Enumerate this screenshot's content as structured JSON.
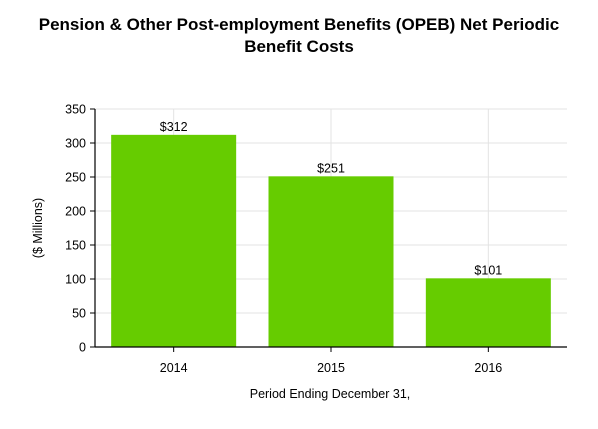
{
  "chart_data": {
    "type": "bar",
    "title_lines": [
      "Pension & Other Post-employment Benefits (OPEB) Net Periodic",
      "Benefit Costs"
    ],
    "categories": [
      "2014",
      "2015",
      "2016"
    ],
    "values": [
      312,
      251,
      101
    ],
    "data_labels": [
      "$312",
      "$251",
      "$101"
    ],
    "xlabel": "Period Ending December 31,",
    "ylabel": "($ Millions)",
    "ylim": [
      0,
      350
    ],
    "yticks": [
      0,
      50,
      100,
      150,
      200,
      250,
      300,
      350
    ],
    "grid": true,
    "legend": "none",
    "colors": {
      "bar": "#66cc00",
      "grid": "#e3e3e3",
      "axis": "#000000",
      "text": "#000000"
    }
  }
}
